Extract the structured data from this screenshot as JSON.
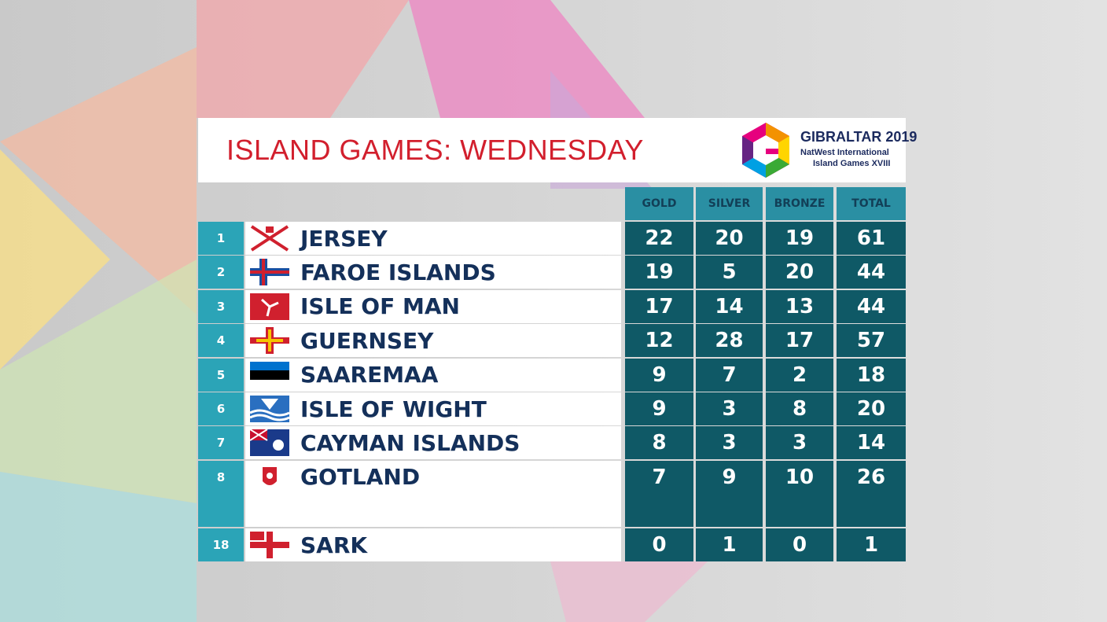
{
  "header": {
    "title": "ISLAND GAMES: WEDNESDAY",
    "logo": {
      "line1": "GIBRALTAR 2019",
      "line2": "NatWest International",
      "line3": "Island Games XVIII"
    }
  },
  "table": {
    "columns": [
      "GOLD",
      "SILVER",
      "BRONZE",
      "TOTAL"
    ],
    "rows": [
      {
        "rank": 1,
        "name": "JERSEY",
        "values": [
          22,
          20,
          19,
          61
        ]
      },
      {
        "rank": 2,
        "name": "FAROE ISLANDS",
        "values": [
          19,
          5,
          20,
          44
        ]
      },
      {
        "rank": 3,
        "name": "ISLE OF MAN",
        "values": [
          17,
          14,
          13,
          44
        ]
      },
      {
        "rank": 4,
        "name": "GUERNSEY",
        "values": [
          12,
          28,
          17,
          57
        ]
      },
      {
        "rank": 5,
        "name": "SAAREMAA",
        "values": [
          9,
          7,
          2,
          18
        ]
      },
      {
        "rank": 6,
        "name": "ISLE OF WIGHT",
        "values": [
          9,
          3,
          8,
          20
        ]
      },
      {
        "rank": 7,
        "name": "CAYMAN ISLANDS",
        "values": [
          8,
          3,
          3,
          14
        ]
      },
      {
        "rank": 8,
        "name": "GOTLAND",
        "values": [
          7,
          9,
          10,
          26
        ]
      },
      {
        "rank": 18,
        "name": "SARK",
        "values": [
          0,
          1,
          0,
          1
        ]
      }
    ]
  }
}
